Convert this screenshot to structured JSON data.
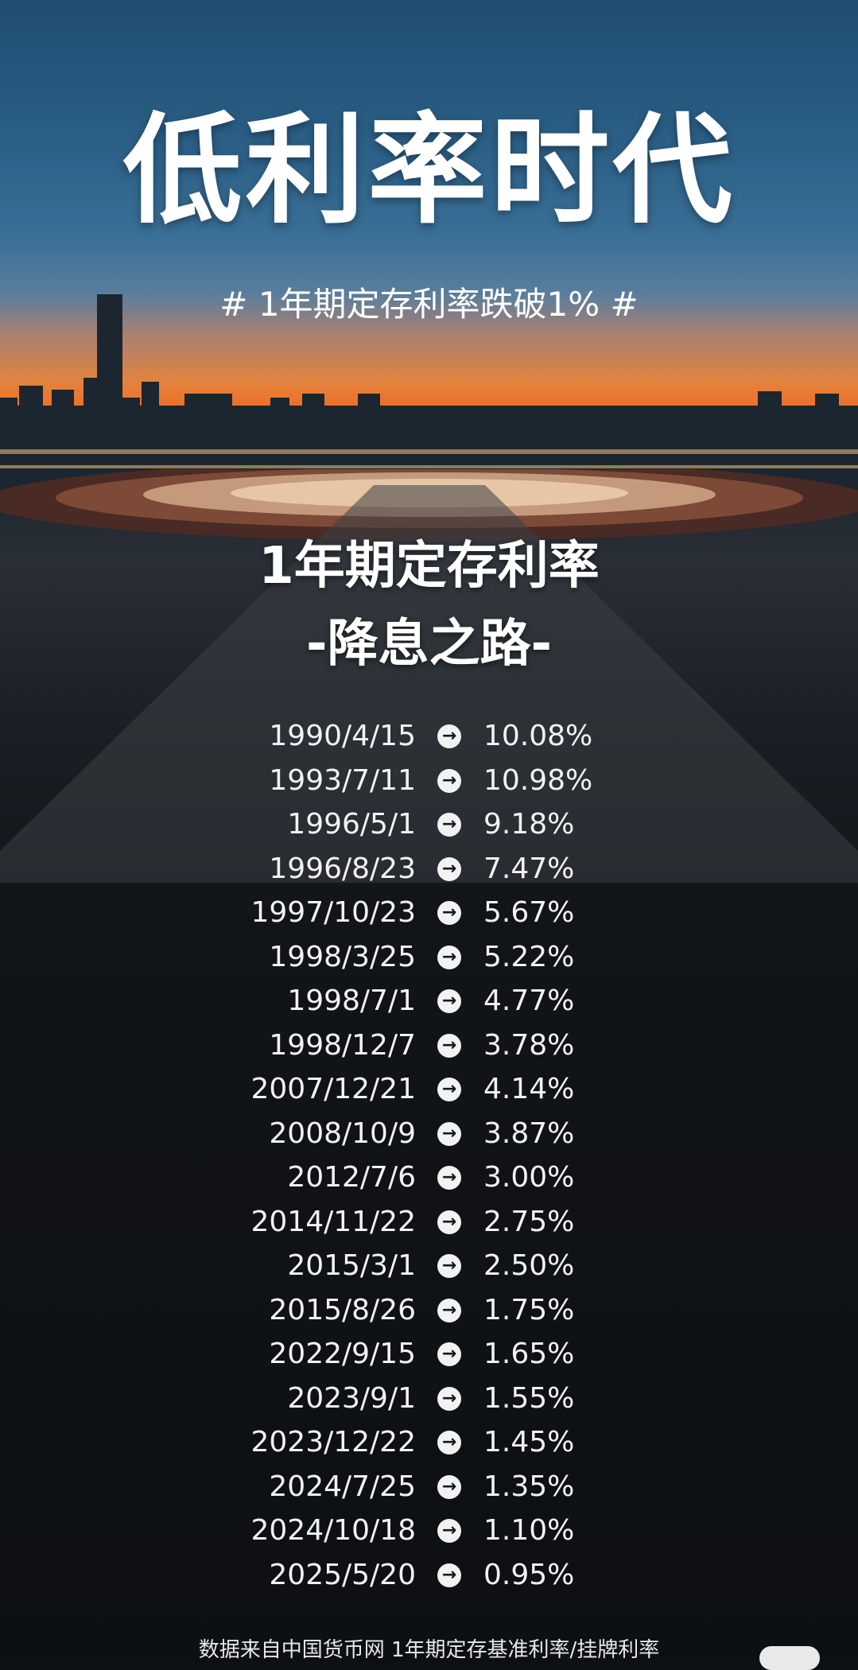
{
  "title": "低利率时代",
  "hashtag": "# 1年期定存利率跌破1% #",
  "subtitle_line1": "1年期定存利率",
  "subtitle_line2": "-降息之路-",
  "rates": [
    {
      "date": "1990/4/15",
      "rate": "10.08%"
    },
    {
      "date": "1993/7/11",
      "rate": "10.98%"
    },
    {
      "date": "1996/5/1",
      "rate": "9.18%"
    },
    {
      "date": "1996/8/23",
      "rate": "7.47%"
    },
    {
      "date": "1997/10/23",
      "rate": "5.67%"
    },
    {
      "date": "1998/3/25",
      "rate": "5.22%"
    },
    {
      "date": "1998/7/1",
      "rate": "4.77%"
    },
    {
      "date": "1998/12/7",
      "rate": "3.78%"
    },
    {
      "date": "2007/12/21",
      "rate": "4.14%"
    },
    {
      "date": "2008/10/9",
      "rate": "3.87%"
    },
    {
      "date": "2012/7/6",
      "rate": "3.00%"
    },
    {
      "date": "2014/11/22",
      "rate": "2.75%"
    },
    {
      "date": "2015/3/1",
      "rate": "2.50%"
    },
    {
      "date": "2015/8/26",
      "rate": "1.75%"
    },
    {
      "date": "2022/9/15",
      "rate": "1.65%"
    },
    {
      "date": "2023/9/1",
      "rate": "1.55%"
    },
    {
      "date": "2023/12/22",
      "rate": "1.45%"
    },
    {
      "date": "2024/7/25",
      "rate": "1.35%"
    },
    {
      "date": "2024/10/18",
      "rate": "1.10%"
    },
    {
      "date": "2025/5/20",
      "rate": "0.95%"
    }
  ],
  "arrow_glyph": "→",
  "source_note": "数据来自中国货币网 1年期定存基准利率/挂牌利率",
  "colors": {
    "sky_top": "#1f4d71",
    "sunset": "#f06a22",
    "background_dark": "#0e1114",
    "text": "#ffffff"
  }
}
